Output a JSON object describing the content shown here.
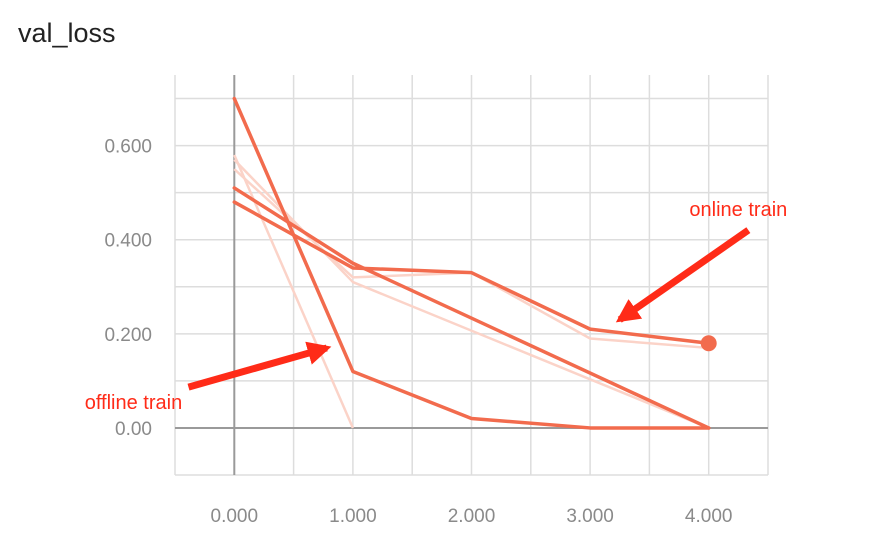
{
  "chart_data": {
    "type": "line",
    "title": "val_loss",
    "xlabel": "",
    "ylabel": "",
    "xlim": [
      -0.5,
      4.5
    ],
    "ylim": [
      -0.1,
      0.75
    ],
    "x_ticks": [
      0,
      1,
      2,
      3,
      4
    ],
    "x_tick_labels": [
      "0.000",
      "1.000",
      "2.000",
      "3.000",
      "4.000"
    ],
    "y_ticks": [
      0,
      0.2,
      0.4,
      0.6
    ],
    "y_tick_labels": [
      "0.00",
      "0.200",
      "0.400",
      "0.600"
    ],
    "grid": true,
    "line_color": "#f26b4d",
    "ghost_color": "#fbd3c8",
    "arrow_color": "#ff2b18",
    "series": [
      {
        "x": [
          0,
          1,
          2,
          3,
          4
        ],
        "y": [
          0.7,
          0.12,
          0.02,
          0.0,
          0.0
        ]
      },
      {
        "x": [
          0,
          1,
          4
        ],
        "y": [
          0.51,
          0.35,
          0.0
        ]
      },
      {
        "x": [
          0,
          1,
          2,
          3,
          4
        ],
        "y": [
          0.48,
          0.34,
          0.33,
          0.21,
          0.18
        ],
        "end_marker": true
      }
    ],
    "ghost_series": [
      {
        "x": [
          0,
          1
        ],
        "y": [
          0.58,
          0.0
        ]
      },
      {
        "x": [
          0,
          1,
          4
        ],
        "y": [
          0.57,
          0.31,
          0.0
        ]
      },
      {
        "x": [
          0,
          1,
          2,
          3,
          4
        ],
        "y": [
          0.55,
          0.32,
          0.33,
          0.19,
          0.17
        ]
      }
    ],
    "annotations": [
      {
        "text": "online train",
        "x": 4.25,
        "y": 0.45,
        "arrow_to": [
          3.25,
          0.23
        ]
      },
      {
        "text": "offline train",
        "x": -0.85,
        "y": 0.04,
        "arrow_to": [
          0.78,
          0.17
        ]
      }
    ]
  }
}
